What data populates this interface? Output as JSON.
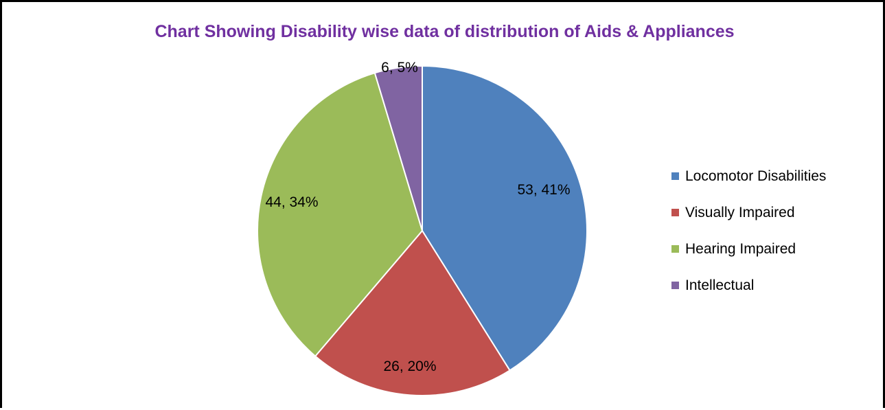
{
  "chart_data": {
    "type": "pie",
    "title": "Chart Showing Disability wise data of distribution of Aids & Appliances",
    "title_color": "#7030A0",
    "categories": [
      "Locomotor Disabilities",
      "Visually Impaired",
      "Hearing Impaired",
      "Intellectual"
    ],
    "values": [
      53,
      26,
      44,
      6
    ],
    "percentages": [
      41,
      20,
      34,
      5
    ],
    "data_labels": [
      "53, 41%",
      "26, 20%",
      "44, 34%",
      "6, 5%"
    ],
    "colors": [
      "#4F81BD",
      "#C0504D",
      "#9BBB59",
      "#8064A2"
    ],
    "start_angle": "12 o'clock",
    "direction": "clockwise",
    "legend_position": "right"
  }
}
